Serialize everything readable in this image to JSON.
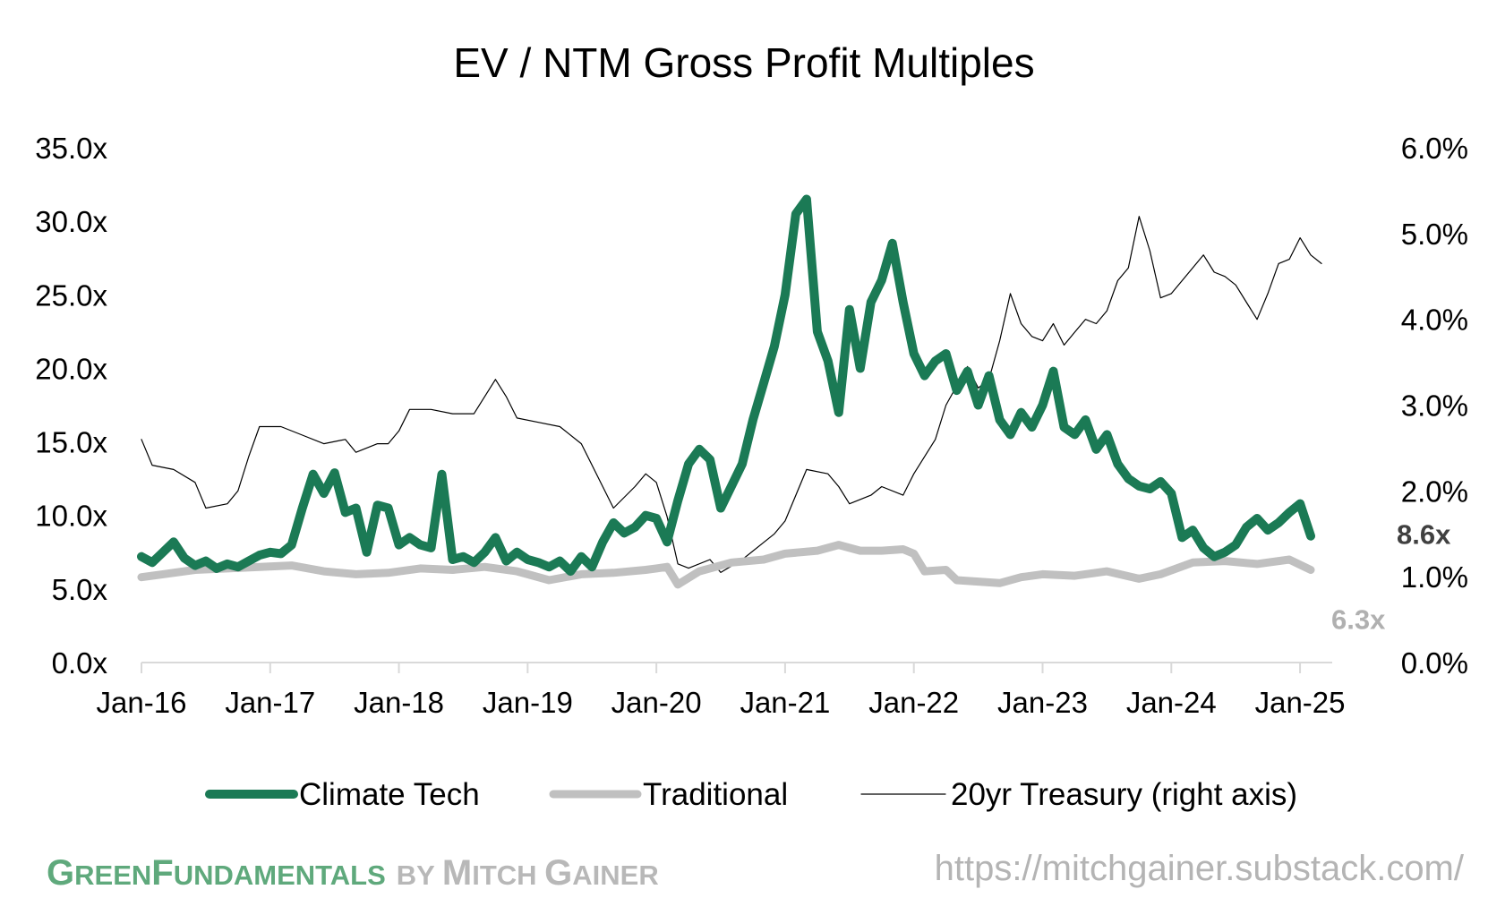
{
  "chart_data": {
    "type": "line",
    "title": "EV / NTM Gross Profit Multiples",
    "x_ticks": [
      "Jan-16",
      "Jan-17",
      "Jan-18",
      "Jan-19",
      "Jan-20",
      "Jan-21",
      "Jan-22",
      "Jan-23",
      "Jan-24",
      "Jan-25"
    ],
    "x_range": [
      "2016-01",
      "2025-04"
    ],
    "y_left": {
      "range": [
        0,
        35
      ],
      "ticks": [
        0,
        5,
        10,
        15,
        20,
        25,
        30,
        35
      ],
      "tick_labels": [
        "0.0x",
        "5.0x",
        "10.0x",
        "15.0x",
        "20.0x",
        "25.0x",
        "30.0x",
        "35.0x"
      ]
    },
    "y_right": {
      "range": [
        0,
        6
      ],
      "ticks": [
        0,
        1,
        2,
        3,
        4,
        5,
        6
      ],
      "tick_labels": [
        "0.0%",
        "1.0%",
        "2.0%",
        "3.0%",
        "4.0%",
        "5.0%",
        "6.0%"
      ]
    },
    "grid": false,
    "legend_position": "bottom",
    "series": [
      {
        "name": "Climate Tech",
        "axis": "left",
        "color": "#1b7a55",
        "end_label": "8.6x",
        "points": [
          [
            "2016-01",
            7.2
          ],
          [
            "2016-02",
            6.8
          ],
          [
            "2016-03",
            7.5
          ],
          [
            "2016-04",
            8.2
          ],
          [
            "2016-05",
            7.1
          ],
          [
            "2016-06",
            6.6
          ],
          [
            "2016-07",
            6.9
          ],
          [
            "2016-08",
            6.4
          ],
          [
            "2016-09",
            6.7
          ],
          [
            "2016-10",
            6.5
          ],
          [
            "2016-11",
            6.9
          ],
          [
            "2016-12",
            7.3
          ],
          [
            "2017-01",
            7.5
          ],
          [
            "2017-02",
            7.4
          ],
          [
            "2017-03",
            8.0
          ],
          [
            "2017-04",
            10.5
          ],
          [
            "2017-05",
            12.8
          ],
          [
            "2017-06",
            11.5
          ],
          [
            "2017-07",
            12.9
          ],
          [
            "2017-08",
            10.2
          ],
          [
            "2017-09",
            10.5
          ],
          [
            "2017-10",
            7.5
          ],
          [
            "2017-11",
            10.7
          ],
          [
            "2017-12",
            10.5
          ],
          [
            "2018-01",
            8.0
          ],
          [
            "2018-02",
            8.5
          ],
          [
            "2018-03",
            8.0
          ],
          [
            "2018-04",
            7.8
          ],
          [
            "2018-05",
            12.8
          ],
          [
            "2018-06",
            7.0
          ],
          [
            "2018-07",
            7.2
          ],
          [
            "2018-08",
            6.8
          ],
          [
            "2018-09",
            7.5
          ],
          [
            "2018-10",
            8.5
          ],
          [
            "2018-11",
            6.9
          ],
          [
            "2018-12",
            7.5
          ],
          [
            "2019-01",
            7.0
          ],
          [
            "2019-02",
            6.8
          ],
          [
            "2019-03",
            6.5
          ],
          [
            "2019-04",
            6.9
          ],
          [
            "2019-05",
            6.2
          ],
          [
            "2019-06",
            7.2
          ],
          [
            "2019-07",
            6.5
          ],
          [
            "2019-08",
            8.2
          ],
          [
            "2019-09",
            9.5
          ],
          [
            "2019-10",
            8.8
          ],
          [
            "2019-11",
            9.2
          ],
          [
            "2019-12",
            10.0
          ],
          [
            "2020-01",
            9.8
          ],
          [
            "2020-02",
            8.2
          ],
          [
            "2020-03",
            11.0
          ],
          [
            "2020-04",
            13.5
          ],
          [
            "2020-05",
            14.5
          ],
          [
            "2020-06",
            13.8
          ],
          [
            "2020-07",
            10.5
          ],
          [
            "2020-08",
            12.0
          ],
          [
            "2020-09",
            13.5
          ],
          [
            "2020-10",
            16.5
          ],
          [
            "2020-11",
            19.0
          ],
          [
            "2020-12",
            21.5
          ],
          [
            "2021-01",
            25.0
          ],
          [
            "2021-02",
            30.5
          ],
          [
            "2021-03",
            31.5
          ],
          [
            "2021-04",
            22.5
          ],
          [
            "2021-05",
            20.5
          ],
          [
            "2021-06",
            17.0
          ],
          [
            "2021-07",
            24.0
          ],
          [
            "2021-08",
            20.0
          ],
          [
            "2021-09",
            24.5
          ],
          [
            "2021-10",
            26.0
          ],
          [
            "2021-11",
            28.5
          ],
          [
            "2021-12",
            24.5
          ],
          [
            "2022-01",
            21.0
          ],
          [
            "2022-02",
            19.5
          ],
          [
            "2022-03",
            20.5
          ],
          [
            "2022-04",
            21.0
          ],
          [
            "2022-05",
            18.5
          ],
          [
            "2022-06",
            19.8
          ],
          [
            "2022-07",
            17.5
          ],
          [
            "2022-08",
            19.5
          ],
          [
            "2022-09",
            16.5
          ],
          [
            "2022-10",
            15.5
          ],
          [
            "2022-11",
            17.0
          ],
          [
            "2022-12",
            16.0
          ],
          [
            "2023-01",
            17.5
          ],
          [
            "2023-02",
            19.8
          ],
          [
            "2023-03",
            16.0
          ],
          [
            "2023-04",
            15.5
          ],
          [
            "2023-05",
            16.5
          ],
          [
            "2023-06",
            14.5
          ],
          [
            "2023-07",
            15.5
          ],
          [
            "2023-08",
            13.5
          ],
          [
            "2023-09",
            12.5
          ],
          [
            "2023-10",
            12.0
          ],
          [
            "2023-11",
            11.8
          ],
          [
            "2023-12",
            12.3
          ],
          [
            "2024-01",
            11.5
          ],
          [
            "2024-02",
            8.5
          ],
          [
            "2024-03",
            9.0
          ],
          [
            "2024-04",
            7.8
          ],
          [
            "2024-05",
            7.2
          ],
          [
            "2024-06",
            7.5
          ],
          [
            "2024-07",
            8.0
          ],
          [
            "2024-08",
            9.2
          ],
          [
            "2024-09",
            9.8
          ],
          [
            "2024-10",
            9.0
          ],
          [
            "2024-11",
            9.5
          ],
          [
            "2024-12",
            10.2
          ],
          [
            "2025-01",
            10.8
          ],
          [
            "2025-02",
            8.6
          ]
        ]
      },
      {
        "name": "Traditional",
        "axis": "left",
        "color": "#c0c0c0",
        "end_label": "6.3x",
        "points": [
          [
            "2016-01",
            5.8
          ],
          [
            "2016-03",
            6.0
          ],
          [
            "2016-06",
            6.3
          ],
          [
            "2016-09",
            6.4
          ],
          [
            "2016-12",
            6.5
          ],
          [
            "2017-03",
            6.6
          ],
          [
            "2017-06",
            6.2
          ],
          [
            "2017-09",
            6.0
          ],
          [
            "2017-12",
            6.1
          ],
          [
            "2018-03",
            6.4
          ],
          [
            "2018-06",
            6.3
          ],
          [
            "2018-09",
            6.5
          ],
          [
            "2018-12",
            6.2
          ],
          [
            "2019-01",
            6.0
          ],
          [
            "2019-03",
            5.6
          ],
          [
            "2019-06",
            6.0
          ],
          [
            "2019-09",
            6.1
          ],
          [
            "2019-12",
            6.3
          ],
          [
            "2020-01",
            6.4
          ],
          [
            "2020-02",
            6.5
          ],
          [
            "2020-03",
            5.3
          ],
          [
            "2020-05",
            6.2
          ],
          [
            "2020-08",
            6.8
          ],
          [
            "2020-11",
            7.0
          ],
          [
            "2021-01",
            7.4
          ],
          [
            "2021-04",
            7.6
          ],
          [
            "2021-06",
            8.0
          ],
          [
            "2021-08",
            7.6
          ],
          [
            "2021-10",
            7.6
          ],
          [
            "2021-12",
            7.7
          ],
          [
            "2022-01",
            7.4
          ],
          [
            "2022-02",
            6.2
          ],
          [
            "2022-04",
            6.3
          ],
          [
            "2022-05",
            5.6
          ],
          [
            "2022-07",
            5.5
          ],
          [
            "2022-09",
            5.4
          ],
          [
            "2022-11",
            5.8
          ],
          [
            "2023-01",
            6.0
          ],
          [
            "2023-04",
            5.9
          ],
          [
            "2023-07",
            6.2
          ],
          [
            "2023-10",
            5.7
          ],
          [
            "2023-12",
            6.0
          ],
          [
            "2024-03",
            6.8
          ],
          [
            "2024-06",
            6.9
          ],
          [
            "2024-09",
            6.7
          ],
          [
            "2024-12",
            7.0
          ],
          [
            "2025-02",
            6.3
          ]
        ]
      },
      {
        "name": "20yr Treasury (right axis)",
        "axis": "right",
        "color": "#000000",
        "points": [
          [
            "2016-01",
            2.6
          ],
          [
            "2016-02",
            2.3
          ],
          [
            "2016-04",
            2.25
          ],
          [
            "2016-06",
            2.1
          ],
          [
            "2016-07",
            1.8
          ],
          [
            "2016-09",
            1.85
          ],
          [
            "2016-10",
            2.0
          ],
          [
            "2016-11",
            2.4
          ],
          [
            "2016-12",
            2.75
          ],
          [
            "2017-02",
            2.75
          ],
          [
            "2017-04",
            2.65
          ],
          [
            "2017-06",
            2.55
          ],
          [
            "2017-08",
            2.6
          ],
          [
            "2017-09",
            2.45
          ],
          [
            "2017-11",
            2.55
          ],
          [
            "2017-12",
            2.55
          ],
          [
            "2018-01",
            2.7
          ],
          [
            "2018-02",
            2.95
          ],
          [
            "2018-04",
            2.95
          ],
          [
            "2018-06",
            2.9
          ],
          [
            "2018-08",
            2.9
          ],
          [
            "2018-10",
            3.3
          ],
          [
            "2018-11",
            3.1
          ],
          [
            "2018-12",
            2.85
          ],
          [
            "2019-02",
            2.8
          ],
          [
            "2019-04",
            2.75
          ],
          [
            "2019-06",
            2.55
          ],
          [
            "2019-08",
            2.05
          ],
          [
            "2019-09",
            1.8
          ],
          [
            "2019-11",
            2.05
          ],
          [
            "2019-12",
            2.2
          ],
          [
            "2020-01",
            2.1
          ],
          [
            "2020-02",
            1.7
          ],
          [
            "2020-03",
            1.15
          ],
          [
            "2020-04",
            1.1
          ],
          [
            "2020-06",
            1.2
          ],
          [
            "2020-07",
            1.05
          ],
          [
            "2020-09",
            1.2
          ],
          [
            "2020-11",
            1.4
          ],
          [
            "2020-12",
            1.5
          ],
          [
            "2021-01",
            1.65
          ],
          [
            "2021-02",
            1.95
          ],
          [
            "2021-03",
            2.25
          ],
          [
            "2021-05",
            2.2
          ],
          [
            "2021-06",
            2.05
          ],
          [
            "2021-07",
            1.85
          ],
          [
            "2021-09",
            1.95
          ],
          [
            "2021-10",
            2.05
          ],
          [
            "2021-12",
            1.95
          ],
          [
            "2022-01",
            2.2
          ],
          [
            "2022-03",
            2.6
          ],
          [
            "2022-04",
            3.0
          ],
          [
            "2022-06",
            3.45
          ],
          [
            "2022-07",
            3.2
          ],
          [
            "2022-08",
            3.3
          ],
          [
            "2022-09",
            3.75
          ],
          [
            "2022-10",
            4.3
          ],
          [
            "2022-11",
            3.95
          ],
          [
            "2022-12",
            3.8
          ],
          [
            "2023-01",
            3.75
          ],
          [
            "2023-02",
            3.95
          ],
          [
            "2023-03",
            3.7
          ],
          [
            "2023-04",
            3.85
          ],
          [
            "2023-05",
            4.0
          ],
          [
            "2023-06",
            3.95
          ],
          [
            "2023-07",
            4.1
          ],
          [
            "2023-08",
            4.45
          ],
          [
            "2023-09",
            4.6
          ],
          [
            "2023-10",
            5.2
          ],
          [
            "2023-11",
            4.8
          ],
          [
            "2023-12",
            4.25
          ],
          [
            "2024-01",
            4.3
          ],
          [
            "2024-02",
            4.45
          ],
          [
            "2024-04",
            4.75
          ],
          [
            "2024-05",
            4.55
          ],
          [
            "2024-06",
            4.5
          ],
          [
            "2024-07",
            4.4
          ],
          [
            "2024-08",
            4.2
          ],
          [
            "2024-09",
            4.0
          ],
          [
            "2024-10",
            4.3
          ],
          [
            "2024-11",
            4.65
          ],
          [
            "2024-12",
            4.7
          ],
          [
            "2025-01",
            4.95
          ],
          [
            "2025-02",
            4.75
          ],
          [
            "2025-03",
            4.65
          ]
        ]
      }
    ]
  },
  "branding": {
    "green_part_1": "G",
    "green_part_1_small": "REEN",
    "green_part_2": "F",
    "green_part_2_small": "UNDAMENTALS",
    "gray_part_1_small": "BY ",
    "gray_part_2": "M",
    "gray_part_2_small": "ITCH ",
    "gray_part_3": "G",
    "gray_part_3_small": "AINER",
    "green_color": "#5fa97c",
    "gray_color": "#b8b8b8",
    "url": "https://mitchgainer.substack.com/"
  }
}
